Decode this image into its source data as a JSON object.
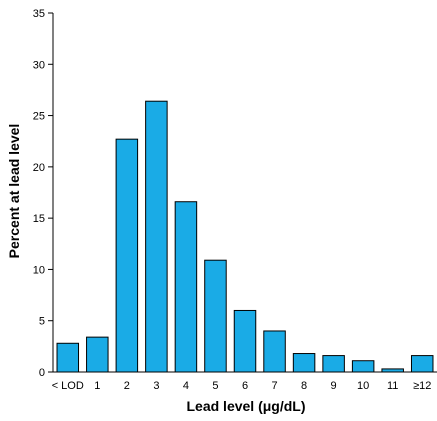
{
  "chart_data": {
    "type": "bar",
    "categories": [
      "< LOD",
      "1",
      "2",
      "3",
      "4",
      "5",
      "6",
      "7",
      "8",
      "9",
      "10",
      "11",
      "≥12"
    ],
    "values": [
      2.8,
      3.4,
      22.7,
      26.4,
      16.6,
      10.9,
      6.0,
      4.0,
      1.8,
      1.6,
      1.1,
      0.3,
      1.6
    ],
    "title": "",
    "xlabel": "Lead level (μg/dL)",
    "ylabel": "Percent at lead level",
    "ylim": [
      0,
      35
    ],
    "yticks": [
      0,
      5,
      10,
      15,
      20,
      25,
      30,
      35
    ],
    "grid": false,
    "legend": "none",
    "bar_color": "#1aabe6"
  }
}
